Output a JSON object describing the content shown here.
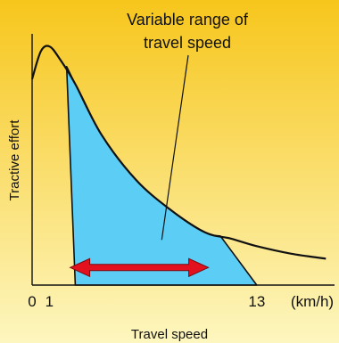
{
  "chart_data": {
    "type": "area",
    "title": "",
    "xlabel": "Travel speed",
    "ylabel": "Tractive effort",
    "x_unit": "(km/h)",
    "x_ticks": [
      {
        "value": 0,
        "label": "0"
      },
      {
        "value": 1,
        "label": "1"
      },
      {
        "value": 13,
        "label": "13"
      }
    ],
    "xlim": [
      0,
      17.5
    ],
    "ylim": [
      0,
      1.0
    ],
    "grid": false,
    "annotation": {
      "text_lines": [
        "Variable range of",
        "travel speed"
      ],
      "points_to": {
        "x": 7.5,
        "y": 0.18
      }
    },
    "range_arrow": {
      "from": 2.2,
      "to": 10.2,
      "y": 0.07
    },
    "range": {
      "from": 1,
      "to": 13
    },
    "curve": [
      {
        "x": 0,
        "y": 0.82
      },
      {
        "x": 0.5,
        "y": 0.93
      },
      {
        "x": 1.0,
        "y": 0.95
      },
      {
        "x": 1.6,
        "y": 0.9
      },
      {
        "x": 2.5,
        "y": 0.8
      },
      {
        "x": 4.0,
        "y": 0.6
      },
      {
        "x": 6.0,
        "y": 0.42
      },
      {
        "x": 8.0,
        "y": 0.3
      },
      {
        "x": 10.0,
        "y": 0.21
      },
      {
        "x": 11.5,
        "y": 0.185
      },
      {
        "x": 13.0,
        "y": 0.155
      },
      {
        "x": 15.0,
        "y": 0.125
      },
      {
        "x": 17.0,
        "y": 0.105
      }
    ],
    "region_boundary": [
      {
        "x": 2.0,
        "y": 0.87
      },
      {
        "x": 2.5,
        "y": 0.8
      },
      {
        "x": 4.0,
        "y": 0.6
      },
      {
        "x": 6.0,
        "y": 0.42
      },
      {
        "x": 8.0,
        "y": 0.3
      },
      {
        "x": 10.0,
        "y": 0.21
      },
      {
        "x": 10.9,
        "y": 0.195
      },
      {
        "x": 13.0,
        "y": 0.0
      },
      {
        "x": 2.5,
        "y": 0.0
      }
    ],
    "colors": {
      "background_top": "#f7c61c",
      "background_bottom": "#fdf6bf",
      "region_fill": "#5ccdf5",
      "curve": "#111111",
      "arrow": "#e3101d"
    }
  }
}
